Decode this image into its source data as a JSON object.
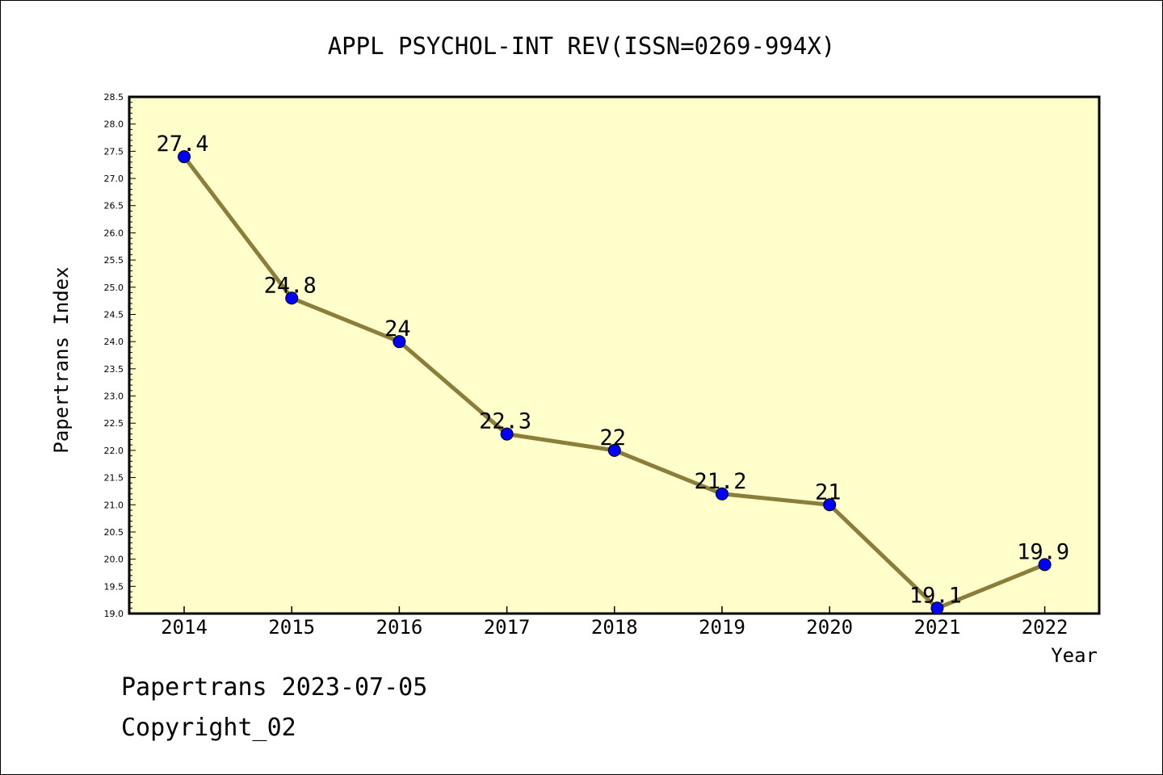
{
  "chart_data": {
    "type": "line",
    "title": "APPL PSYCHOL-INT REV(ISSN=0269-994X)",
    "xlabel": "Year",
    "ylabel": "Papertrans Index",
    "x": [
      "2014",
      "2015",
      "2016",
      "2017",
      "2018",
      "2019",
      "2020",
      "2021",
      "2022"
    ],
    "series": [
      {
        "values": [
          27.4,
          24.8,
          24,
          22.3,
          22,
          21.2,
          21,
          19.1,
          19.9
        ],
        "labels": [
          "27.4",
          "24.8",
          "24",
          "22.3",
          "22",
          "21.2",
          "21",
          "19.1",
          "19.9"
        ]
      }
    ],
    "ylim": [
      19.0,
      28.5
    ],
    "ytick_labels": [
      "19.0",
      "19.5",
      "20.0",
      "20.5",
      "21.0",
      "21.5",
      "22.0",
      "22.5",
      "23.0",
      "23.5",
      "24.0",
      "24.5",
      "25.0",
      "25.5",
      "26.0",
      "26.5",
      "27.0",
      "27.5",
      "28.0",
      "28.5"
    ],
    "grid": false,
    "legend": "none",
    "colors": {
      "plot_background": "#ffffcc",
      "line": "#8b7d3a",
      "marker": "#0000ff",
      "axis": "#000000"
    }
  },
  "footer": {
    "date_line": "Papertrans 2023-07-05",
    "copyright_line": "Copyright_02"
  }
}
